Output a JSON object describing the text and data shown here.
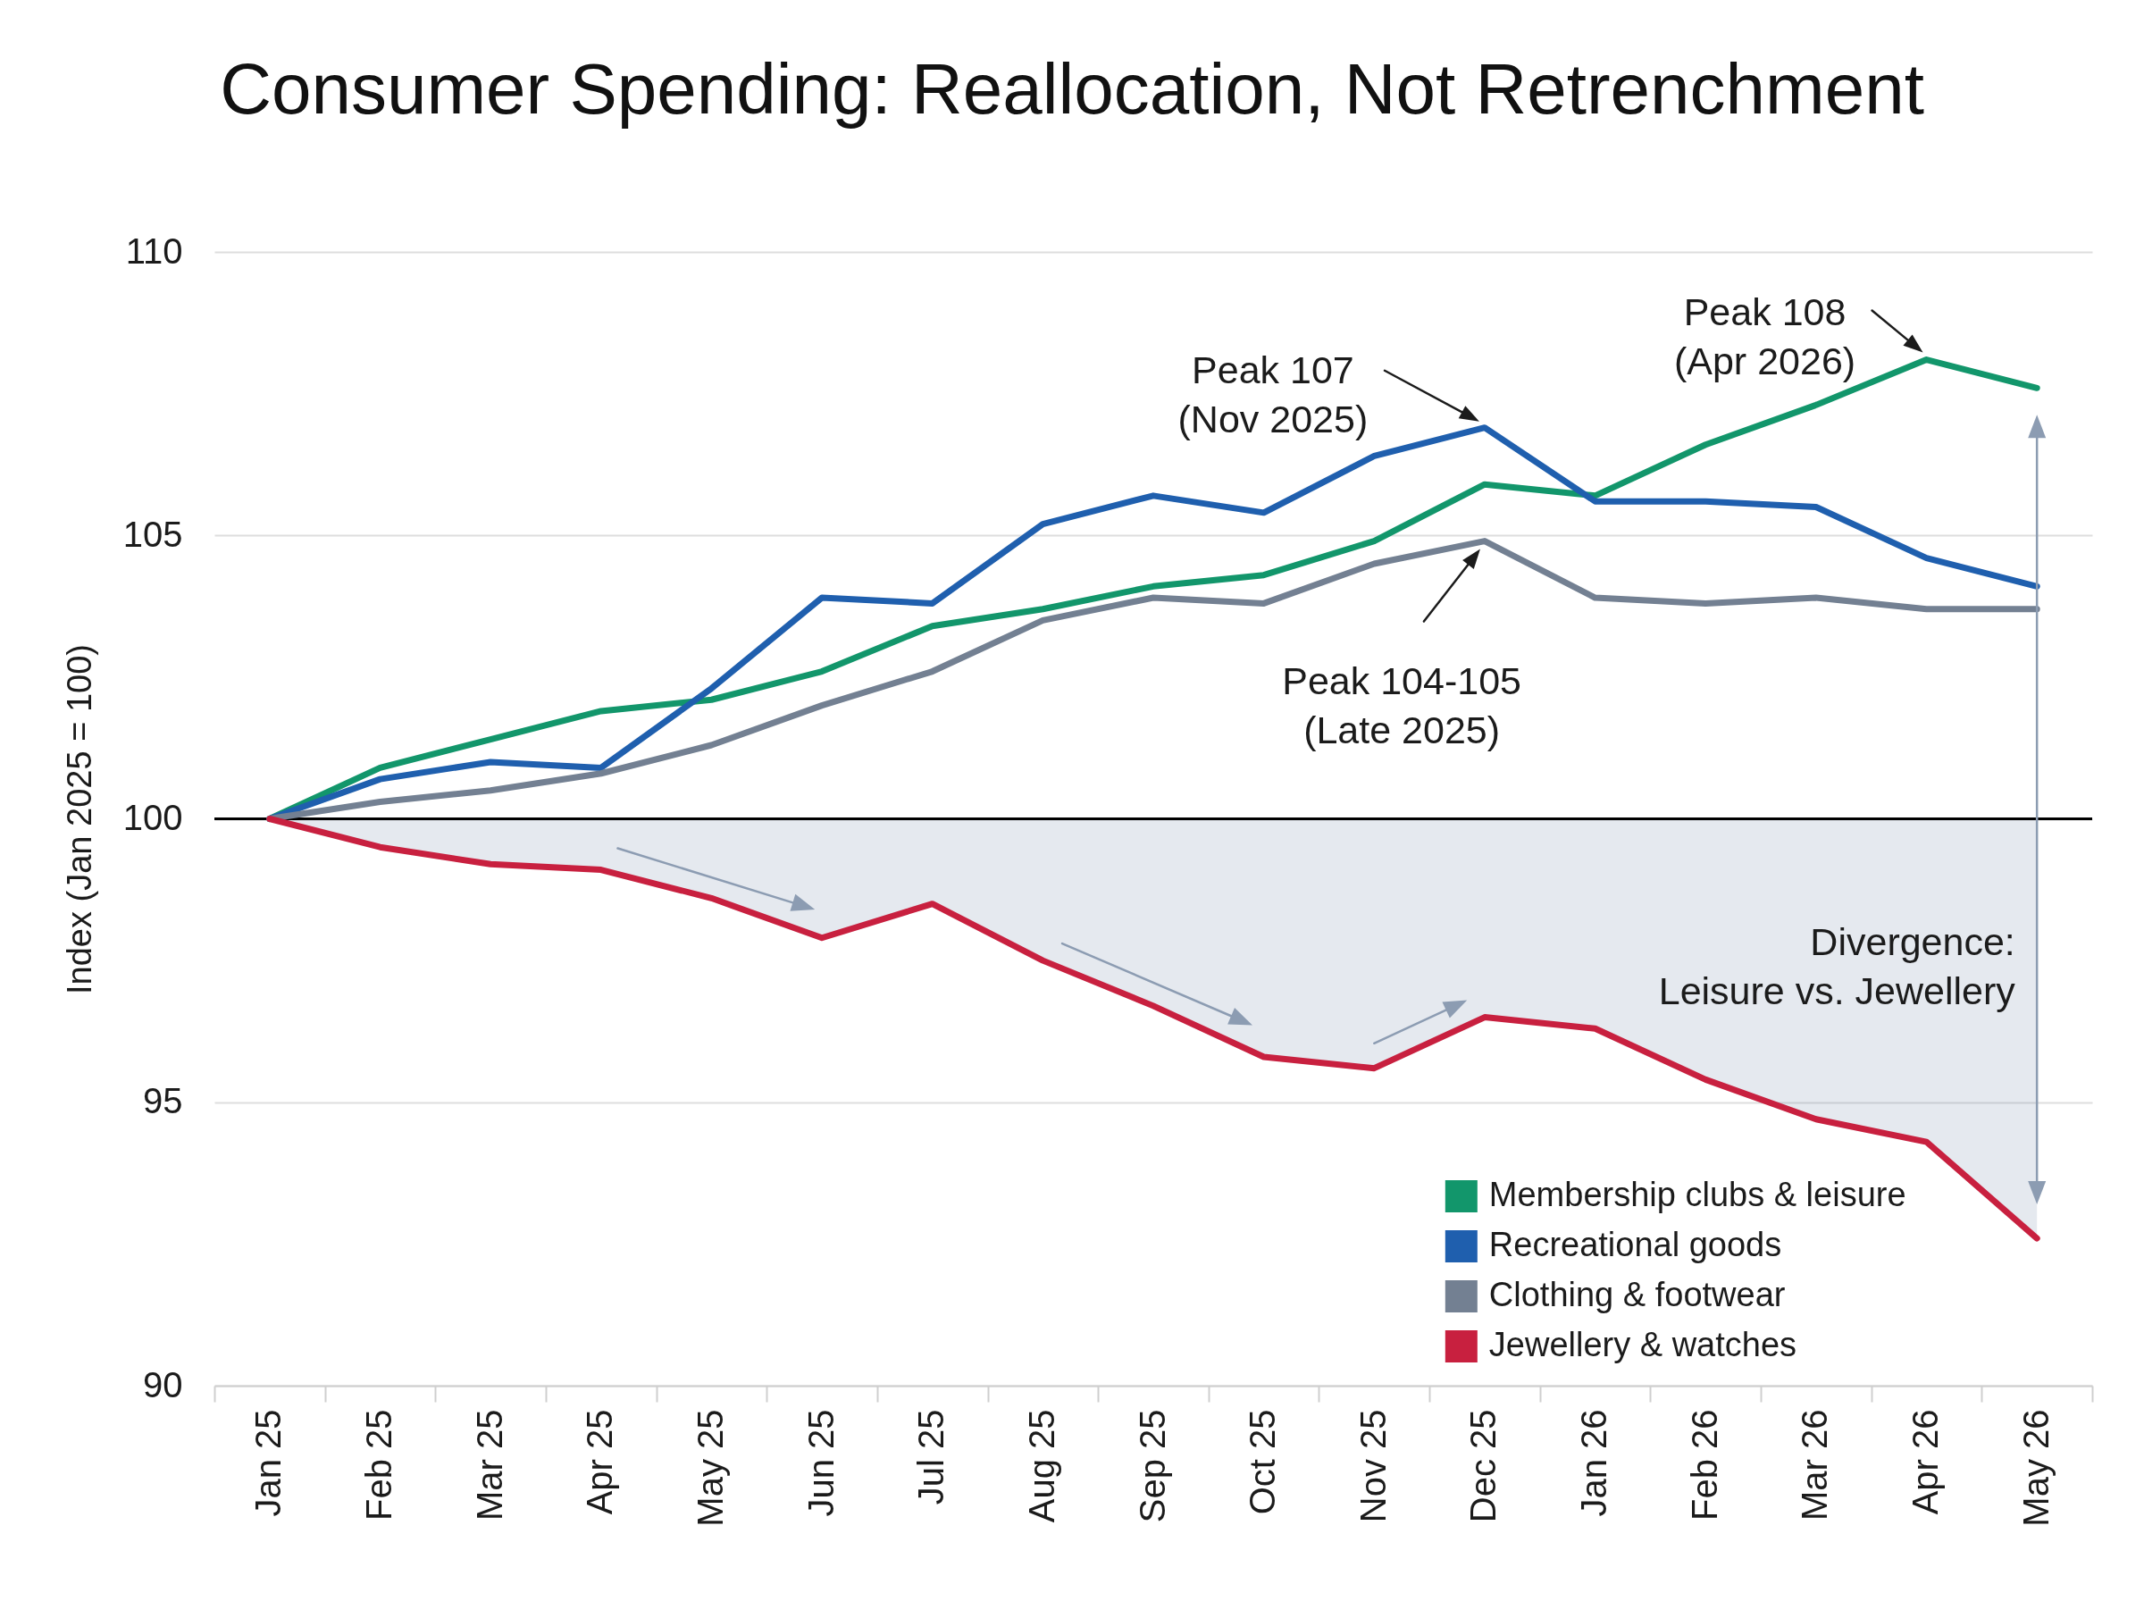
{
  "chart_data": {
    "type": "line",
    "title": "Consumer Spending: Reallocation, Not Retrenchment",
    "ylabel": "Index (Jan 2025 = 100)",
    "categories": [
      "Jan 25",
      "Feb 25",
      "Mar 25",
      "Apr 25",
      "May 25",
      "Jun 25",
      "Jul 25",
      "Aug 25",
      "Sep 25",
      "Oct 25",
      "Nov 25",
      "Dec 25",
      "Jan 26",
      "Feb 26",
      "Mar 26",
      "Apr 26",
      "May 26"
    ],
    "series": [
      {
        "name": "Membership clubs & leisure",
        "color": "#12966b",
        "values": [
          100,
          100.9,
          101.4,
          101.9,
          102.1,
          102.6,
          103.4,
          103.7,
          104.1,
          104.3,
          104.9,
          105.9,
          105.7,
          106.6,
          107.3,
          108.1,
          107.6
        ]
      },
      {
        "name": "Recreational goods",
        "color": "#1f5fae",
        "values": [
          100,
          100.7,
          101.0,
          100.9,
          102.3,
          103.9,
          103.8,
          105.2,
          105.7,
          105.4,
          106.4,
          106.9,
          105.6,
          105.6,
          105.5,
          104.6,
          104.1
        ]
      },
      {
        "name": "Clothing & footwear",
        "color": "#738092",
        "values": [
          100,
          100.3,
          100.5,
          100.8,
          101.3,
          102.0,
          102.6,
          103.5,
          103.9,
          103.8,
          104.5,
          104.9,
          103.9,
          103.8,
          103.9,
          103.7,
          103.7
        ]
      },
      {
        "name": "Jewellery & watches",
        "color": "#c8203f",
        "values": [
          100,
          99.5,
          99.2,
          99.1,
          98.6,
          97.9,
          98.5,
          97.5,
          96.7,
          95.8,
          95.6,
          96.5,
          96.3,
          95.4,
          94.7,
          94.3,
          92.6
        ],
        "lower": [
          100,
          99.5,
          99.2,
          99.1,
          98.6,
          97.9,
          98.5,
          97.5,
          96.7,
          95.8,
          95.6,
          96.5,
          96.3,
          95.4,
          94.7,
          94.3,
          92.6
        ],
        "upper": [
          100,
          100,
          100,
          100,
          100,
          100,
          100,
          100,
          100,
          100,
          100,
          100,
          100,
          100,
          100,
          100,
          100
        ]
      }
    ],
    "ylim": [
      90,
      110
    ],
    "yticks": [
      90,
      95,
      100,
      105,
      110
    ],
    "ref_lines": [
      {
        "axis": "y",
        "value": 100,
        "color": "#000000"
      }
    ],
    "annotations": [
      "Peak 107\n(Nov 2025)",
      {
        "text": "Peak 108\n(Apr 2026)",
        "x": "Apr 26",
        "y": 108.1
      },
      "Peak 104-105\n(Late 2025)",
      "Divergence:\nLeisure vs. Jewellery"
    ],
    "grid": "y",
    "legend": "bottom right"
  }
}
